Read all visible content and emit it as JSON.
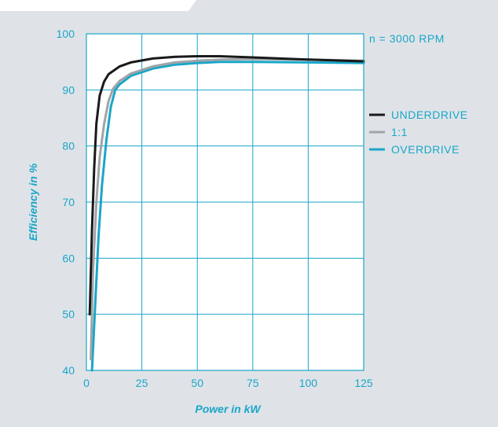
{
  "chart_data": {
    "type": "line",
    "title": "",
    "annotation": "n = 3000 RPM",
    "xlabel": "Power in kW",
    "ylabel": "Efficiency in %",
    "xlim": [
      0,
      125
    ],
    "ylim": [
      40,
      100
    ],
    "xticks": [
      0,
      25,
      50,
      75,
      100,
      125
    ],
    "yticks": [
      40,
      50,
      60,
      70,
      80,
      90,
      100
    ],
    "grid": true,
    "legend_position": "right",
    "series": [
      {
        "name": "UNDERDRIVE",
        "color": "#1a1a1a",
        "x": [
          1.5,
          2.5,
          3.5,
          4.5,
          6,
          8,
          10,
          15,
          20,
          30,
          40,
          50,
          60,
          75,
          100,
          125
        ],
        "y": [
          50,
          65,
          76,
          84,
          89,
          91.5,
          92.8,
          94.2,
          94.9,
          95.6,
          95.9,
          96.0,
          96.0,
          95.8,
          95.4,
          95.1
        ]
      },
      {
        "name": "1:1",
        "color": "#a0a4a8",
        "x": [
          2,
          3,
          4.5,
          6,
          8,
          10,
          12,
          15,
          20,
          30,
          40,
          50,
          60,
          75,
          100,
          125
        ],
        "y": [
          42,
          58,
          70,
          78,
          84,
          88,
          90.2,
          91.6,
          92.9,
          94.2,
          94.9,
          95.2,
          95.4,
          95.5,
          95.4,
          95.2
        ]
      },
      {
        "name": "OVERDRIVE",
        "color": "#1aa6c8",
        "x": [
          2.5,
          4,
          5.5,
          7,
          9,
          11,
          13,
          15,
          20,
          30,
          40,
          50,
          60,
          75,
          100,
          125
        ],
        "y": [
          40,
          52,
          64,
          73,
          81,
          87,
          90,
          91,
          92.5,
          93.8,
          94.5,
          94.8,
          95.0,
          95.0,
          94.9,
          94.8
        ]
      }
    ]
  }
}
